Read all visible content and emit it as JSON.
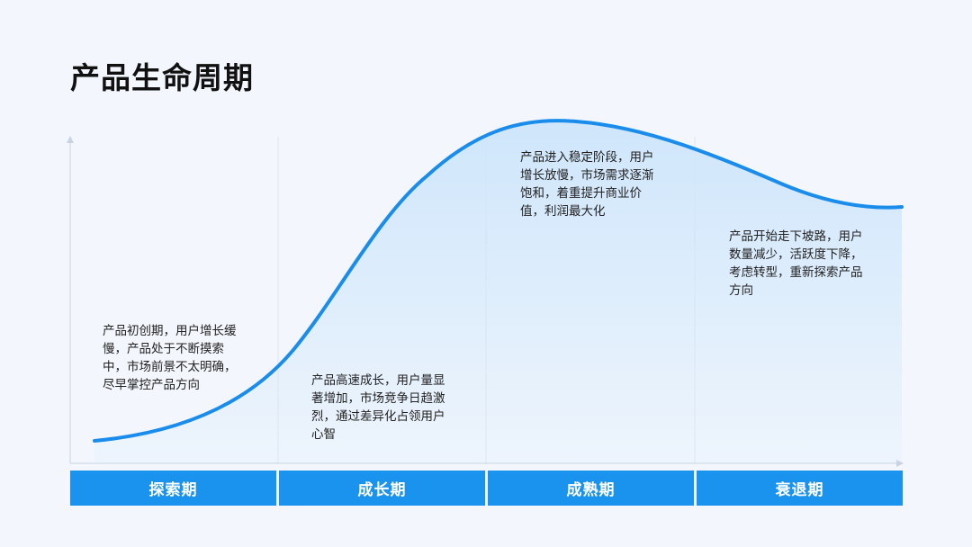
{
  "title": "产品生命周期",
  "colors": {
    "curve": "#1a8ceb",
    "phase_bar": "#1a93ee",
    "area_fill": "#cfe6fb",
    "divider": "#dfe6ee",
    "axis": "#c9d3df"
  },
  "phases": [
    {
      "label": "探索期",
      "description": "产品初创期，用户增长缓慢，产品处于不断摸索中，市场前景不太明确，尽早掌控产品方向"
    },
    {
      "label": "成长期",
      "description": "产品高速成长，用户量显著增加，市场竞争日趋激烈，通过差异化占领用户心智"
    },
    {
      "label": "成熟期",
      "description": "产品进入稳定阶段，用户增长放慢，市场需求逐渐饱和，着重提升商业价值，利润最大化"
    },
    {
      "label": "衰退期",
      "description": "产品开始走下坡路，用户数量减少，活跃度下降，考虑转型，重新探索产品方向"
    }
  ]
}
